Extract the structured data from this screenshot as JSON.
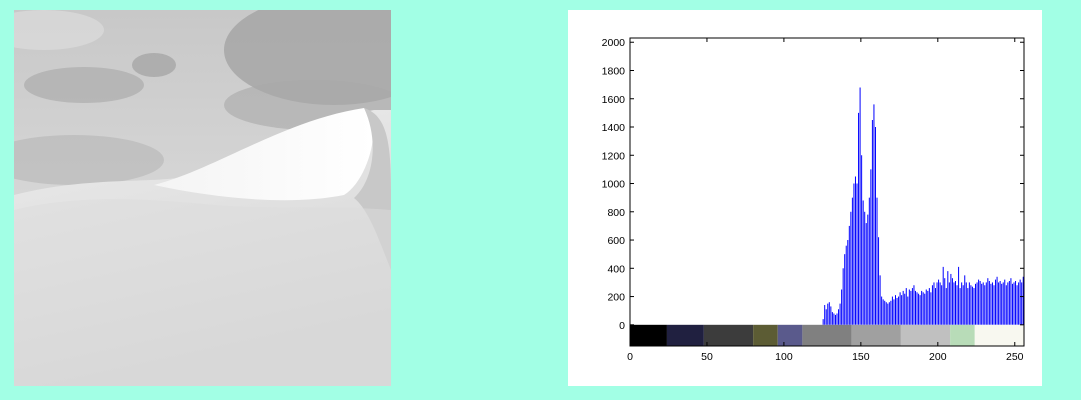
{
  "photo": {
    "subject": "grayscale sand dune under cloudy sky",
    "sky_color": "#d2d2d2",
    "sand_color": "#e4e4e4"
  },
  "chart_data": {
    "type": "bar",
    "title": "",
    "xlabel": "",
    "ylabel": "",
    "xlim": [
      0,
      256
    ],
    "ylim": [
      -150,
      2030
    ],
    "xticks": [
      0,
      50,
      100,
      150,
      200,
      250
    ],
    "yticks": [
      0,
      200,
      400,
      600,
      800,
      1000,
      1200,
      1400,
      1600,
      1800,
      2000
    ],
    "bar_color": "#0000ff",
    "grid": false,
    "bin_start": 125,
    "bin_end": 255,
    "values": [
      40,
      140,
      110,
      150,
      160,
      130,
      90,
      80,
      70,
      80,
      110,
      150,
      250,
      400,
      500,
      560,
      600,
      700,
      800,
      900,
      1000,
      1050,
      1000,
      1500,
      1680,
      1200,
      880,
      800,
      720,
      780,
      900,
      1100,
      1450,
      1560,
      1400,
      900,
      620,
      350,
      200,
      180,
      170,
      160,
      150,
      160,
      170,
      200,
      180,
      210,
      190,
      200,
      230,
      210,
      240,
      220,
      260,
      200,
      250,
      240,
      260,
      280,
      240,
      230,
      220,
      210,
      240,
      230,
      220,
      250,
      240,
      260,
      230,
      280,
      300,
      260,
      300,
      320,
      300,
      280,
      410,
      330,
      260,
      380,
      300,
      360,
      330,
      300,
      310,
      280,
      410,
      260,
      300,
      280,
      350,
      300,
      260,
      300,
      280,
      270,
      260,
      290,
      300,
      320,
      310,
      290,
      300,
      280,
      300,
      330,
      310,
      290,
      300,
      280,
      320,
      340,
      300,
      310,
      290,
      300,
      320,
      280,
      300,
      310,
      330,
      290,
      300,
      310,
      280,
      300,
      320,
      300,
      340
    ],
    "colorbar": {
      "segments": [
        {
          "from": 0,
          "to": 24,
          "color": "#000000"
        },
        {
          "from": 24,
          "to": 48,
          "color": "#202040"
        },
        {
          "from": 48,
          "to": 80,
          "color": "#3c3c3c"
        },
        {
          "from": 80,
          "to": 96,
          "color": "#5c5c34"
        },
        {
          "from": 96,
          "to": 112,
          "color": "#5a5a8c"
        },
        {
          "from": 112,
          "to": 144,
          "color": "#808080"
        },
        {
          "from": 144,
          "to": 176,
          "color": "#a0a0a0"
        },
        {
          "from": 176,
          "to": 208,
          "color": "#c0c0c0"
        },
        {
          "from": 208,
          "to": 224,
          "color": "#b8dcb8"
        },
        {
          "from": 224,
          "to": 256,
          "color": "#f8f8f0"
        }
      ]
    }
  }
}
